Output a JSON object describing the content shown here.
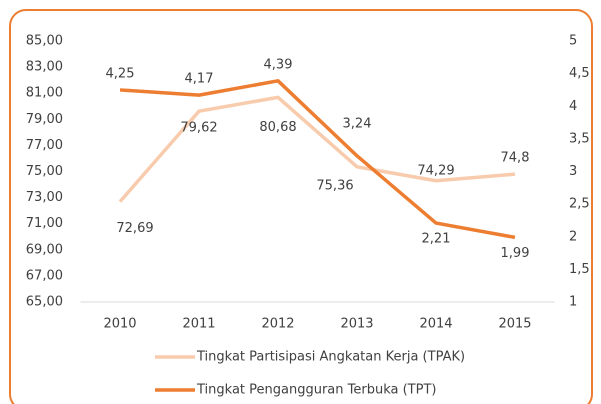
{
  "chart_data": {
    "type": "line",
    "categories": [
      "2010",
      "2011",
      "2012",
      "2013",
      "2014",
      "2015"
    ],
    "series": [
      {
        "name": "Tingkat Partisipasi Angkatan Kerja (TPAK)",
        "color": "#f8cbad",
        "values": [
          72.69,
          79.62,
          80.68,
          75.36,
          74.29,
          74.8
        ],
        "value_labels": [
          "72,69",
          "79,62",
          "80,68",
          "75,36",
          "74,29",
          "74,8"
        ]
      },
      {
        "name": "Tingkat Pengangguran Terbuka (TPT)",
        "color": "#ed7d31",
        "axis": "y2",
        "values": [
          4.25,
          4.17,
          4.39,
          3.24,
          2.21,
          1.99
        ],
        "value_labels": [
          "4,25",
          "4,17",
          "4,39",
          "3,24",
          "2,21",
          "1,99"
        ]
      }
    ],
    "ylim": [
      65,
      85
    ],
    "yticks": [
      {
        "value": 65,
        "label": "65,00"
      },
      {
        "value": 67,
        "label": "67,00"
      },
      {
        "value": 69,
        "label": "69,00"
      },
      {
        "value": 71,
        "label": "71,00"
      },
      {
        "value": 73,
        "label": "73,00"
      },
      {
        "value": 75,
        "label": "75,00"
      },
      {
        "value": 77,
        "label": "77,00"
      },
      {
        "value": 79,
        "label": "79,00"
      },
      {
        "value": 81,
        "label": "81,00"
      },
      {
        "value": 83,
        "label": "83,00"
      },
      {
        "value": 85,
        "label": "85,00"
      }
    ],
    "y2lim": [
      1,
      5
    ],
    "y2ticks": [
      1,
      {
        "value": 1.5,
        "label": "1,5"
      },
      2,
      {
        "value": 2.5,
        "label": "2,5"
      },
      3,
      {
        "value": 3.5,
        "label": "3,5"
      },
      4,
      {
        "value": 4.5,
        "label": "4,5"
      },
      5
    ],
    "legend": "bottom"
  }
}
